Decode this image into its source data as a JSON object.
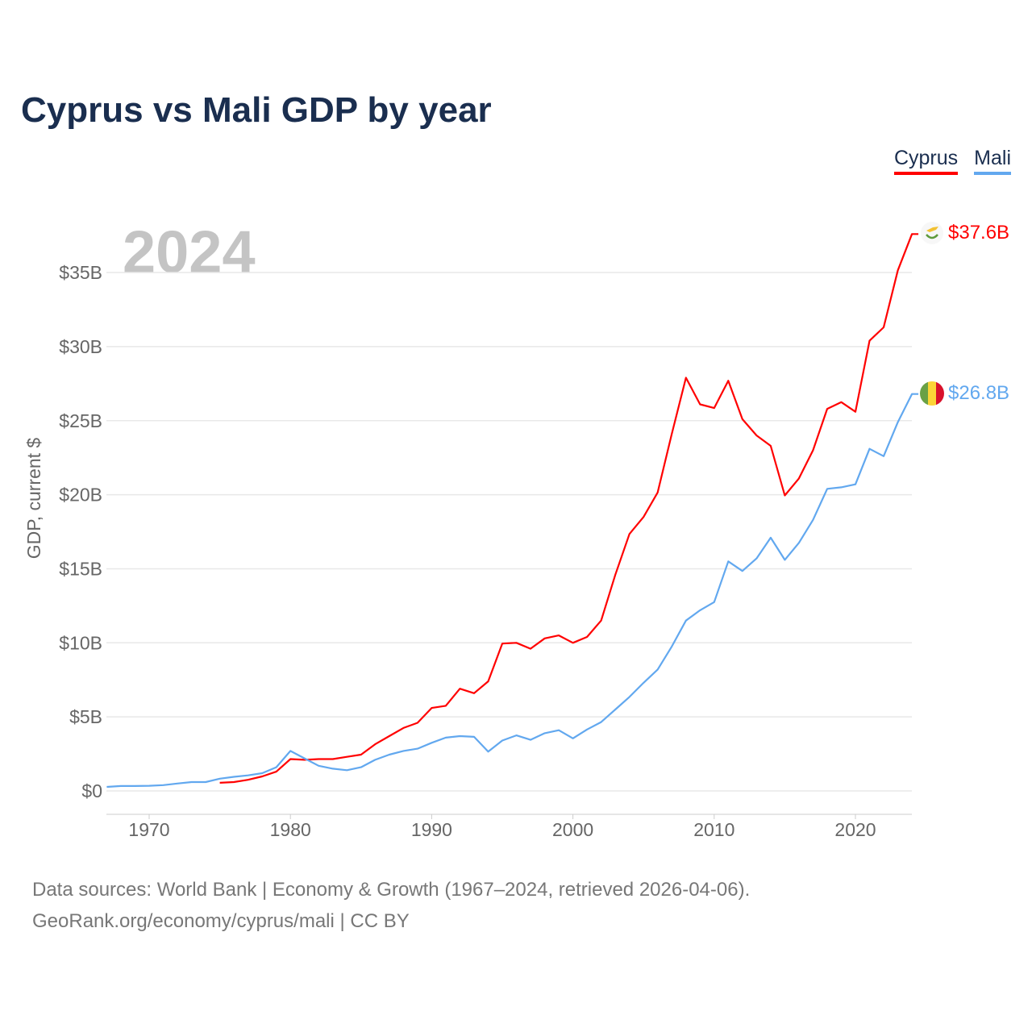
{
  "chart_data": {
    "type": "line",
    "title": "Cyprus vs Mali GDP by year",
    "ylabel": "GDP, current $",
    "xlabel": "",
    "year_label": "2024",
    "xlim": [
      1967,
      2024
    ],
    "ylim": [
      0,
      38
    ],
    "x_ticks": [
      1970,
      1980,
      1990,
      2000,
      2010,
      2020
    ],
    "y_ticks": [
      0,
      5,
      10,
      15,
      20,
      25,
      30,
      35
    ],
    "y_tick_labels": [
      "$0",
      "$5B",
      "$10B",
      "$15B",
      "$20B",
      "$25B",
      "$30B",
      "$35B"
    ],
    "grid": true,
    "legend_position": "top-right",
    "series": [
      {
        "name": "Cyprus",
        "color": "#ff0000",
        "end_label": "$37.6B",
        "start_year": 1975,
        "values": [
          0.55,
          0.6,
          0.75,
          0.98,
          1.3,
          2.15,
          2.1,
          2.15,
          2.15,
          2.3,
          2.45,
          3.15,
          3.7,
          4.25,
          4.6,
          5.6,
          5.75,
          6.9,
          6.6,
          7.4,
          9.95,
          10.0,
          9.6,
          10.3,
          10.5,
          10.0,
          10.4,
          11.5,
          14.6,
          17.35,
          18.5,
          20.15,
          24.1,
          27.9,
          26.1,
          25.85,
          27.7,
          25.1,
          24.0,
          23.3,
          19.95,
          21.1,
          23.0,
          25.8,
          26.25,
          25.6,
          30.4,
          31.3,
          35.15,
          37.6
        ]
      },
      {
        "name": "Mali",
        "color": "#62a8ef",
        "end_label": "$26.8B",
        "start_year": 1967,
        "values": [
          0.27,
          0.33,
          0.33,
          0.35,
          0.39,
          0.5,
          0.6,
          0.6,
          0.83,
          0.95,
          1.05,
          1.2,
          1.6,
          2.7,
          2.2,
          1.7,
          1.5,
          1.4,
          1.6,
          2.1,
          2.45,
          2.7,
          2.85,
          3.25,
          3.6,
          3.7,
          3.65,
          2.65,
          3.4,
          3.75,
          3.45,
          3.9,
          4.1,
          3.55,
          4.15,
          4.65,
          5.5,
          6.35,
          7.3,
          8.2,
          9.75,
          11.5,
          12.2,
          12.75,
          15.5,
          14.85,
          15.7,
          17.1,
          15.6,
          16.75,
          18.3,
          20.4,
          20.5,
          20.7,
          23.1,
          22.6,
          24.9,
          26.8
        ]
      }
    ]
  },
  "footer": {
    "line1": "Data sources: World Bank | Economy & Growth (1967–2024, retrieved 2026-04-06).",
    "line2": "GeoRank.org/economy/cyprus/mali | CC BY"
  }
}
